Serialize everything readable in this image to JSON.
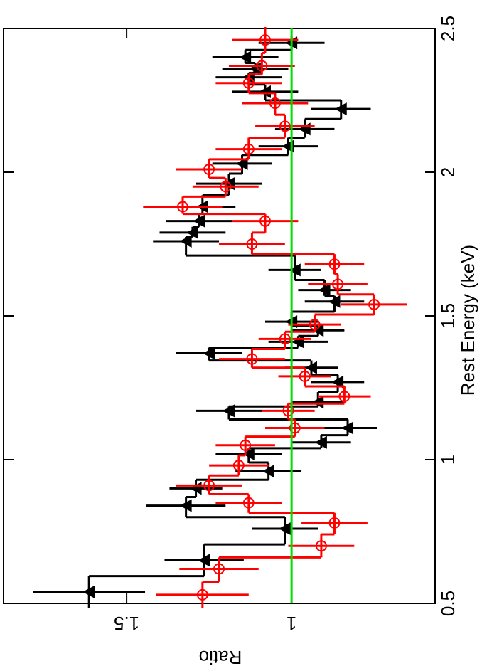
{
  "chart_data": {
    "type": "errorbar-step",
    "x_label": "Rest Energy (keV)",
    "y_label": "Ratio",
    "xlim": [
      0.5,
      2.5
    ],
    "xticks": [
      0.5,
      1,
      1.5,
      2,
      2.5
    ],
    "ylim": [
      0.565,
      1.873
    ],
    "yticks": [
      1,
      1.5
    ],
    "reference_line": {
      "value": 1,
      "color": "#00dd00"
    },
    "series": [
      {
        "name": "black",
        "color": "#000000",
        "marker": "triangle",
        "x": [
          0.54,
          0.65,
          0.76,
          0.84,
          0.9,
          0.96,
          1.02,
          1.06,
          1.11,
          1.17,
          1.2,
          1.27,
          1.32,
          1.37,
          1.41,
          1.45,
          1.48,
          1.55,
          1.59,
          1.66,
          1.76,
          1.79,
          1.83,
          1.88,
          1.96,
          2.03,
          2.09,
          2.15,
          2.22,
          2.28,
          2.33,
          2.36,
          2.4,
          2.45
        ],
        "values": [
          1.614,
          1.265,
          1.02,
          1.32,
          1.29,
          1.07,
          1.13,
          0.91,
          0.83,
          1.19,
          0.92,
          0.86,
          0.94,
          1.25,
          0.98,
          0.92,
          1.0,
          0.87,
          0.9,
          0.99,
          1.32,
          1.3,
          1.28,
          1.27,
          1.19,
          1.15,
          1.01,
          0.96,
          0.85,
          1.08,
          1.13,
          1.11,
          1.14,
          1.0
        ],
        "yerr": [
          0.17,
          0.12,
          0.1,
          0.12,
          0.08,
          0.1,
          0.1,
          0.09,
          0.09,
          0.1,
          0.08,
          0.08,
          0.08,
          0.1,
          0.09,
          0.08,
          0.08,
          0.09,
          0.08,
          0.08,
          0.1,
          0.1,
          0.1,
          0.1,
          0.1,
          0.09,
          0.09,
          0.09,
          0.09,
          0.1,
          0.1,
          0.1,
          0.1,
          0.1
        ]
      },
      {
        "name": "red",
        "color": "#ff0000",
        "marker": "circle",
        "x": [
          0.53,
          0.62,
          0.7,
          0.78,
          0.85,
          0.91,
          0.98,
          1.05,
          1.11,
          1.17,
          1.22,
          1.29,
          1.35,
          1.42,
          1.47,
          1.54,
          1.61,
          1.68,
          1.75,
          1.83,
          1.88,
          1.95,
          2.01,
          2.08,
          2.16,
          2.24,
          2.31,
          2.37,
          2.46
        ],
        "values": [
          1.27,
          1.22,
          0.91,
          0.87,
          1.13,
          1.25,
          1.16,
          1.14,
          0.99,
          1.01,
          0.84,
          0.96,
          1.12,
          1.02,
          0.93,
          0.75,
          0.86,
          0.87,
          1.12,
          1.08,
          1.33,
          1.2,
          1.25,
          1.13,
          1.02,
          1.05,
          1.13,
          1.09,
          1.08
        ],
        "yerr": [
          0.14,
          0.12,
          0.1,
          0.1,
          0.1,
          0.1,
          0.09,
          0.09,
          0.09,
          0.08,
          0.08,
          0.08,
          0.1,
          0.08,
          0.08,
          0.1,
          0.09,
          0.09,
          0.1,
          0.1,
          0.12,
          0.1,
          0.1,
          0.1,
          0.09,
          0.1,
          0.1,
          0.1,
          0.1
        ]
      }
    ]
  }
}
